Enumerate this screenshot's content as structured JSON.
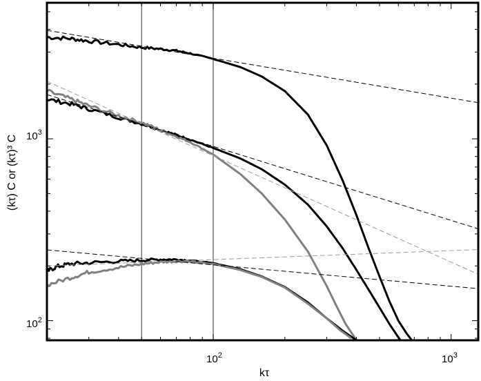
{
  "chart_data": {
    "type": "line",
    "xlabel": "kτ",
    "ylabel": "(kτ) C  or  (kτ)³ C",
    "xscale": "log",
    "yscale": "log",
    "xlim": [
      20,
      1300
    ],
    "ylim": [
      78,
      5600
    ],
    "grid": false,
    "legend": "none",
    "x_ticks": [
      {
        "value": 100,
        "base": "10",
        "exp": "2"
      },
      {
        "value": 1000,
        "base": "10",
        "exp": "3"
      }
    ],
    "y_ticks": [
      {
        "value": 100,
        "base": "10",
        "exp": "2"
      },
      {
        "value": 1000,
        "base": "10",
        "exp": "3"
      }
    ],
    "vertical_lines": [
      50,
      100
    ],
    "colors": {
      "black": "#000000",
      "gray": "#808080",
      "reference": "#000000",
      "reference_gray": "#9a9a9a"
    },
    "series": [
      {
        "color": "black",
        "style": "solid",
        "noisy": true,
        "points": [
          [
            20,
            3620
          ],
          [
            25,
            3560
          ],
          [
            30,
            3450
          ],
          [
            40,
            3300
          ],
          [
            50,
            3180
          ],
          [
            60,
            3120
          ],
          [
            70,
            3050
          ],
          [
            80,
            2950
          ],
          [
            100,
            2750
          ],
          [
            130,
            2480
          ],
          [
            160,
            2200
          ],
          [
            200,
            1830
          ],
          [
            250,
            1360
          ],
          [
            300,
            920
          ],
          [
            350,
            590
          ],
          [
            400,
            380
          ],
          [
            450,
            250
          ],
          [
            500,
            175
          ],
          [
            550,
            128
          ],
          [
            600,
            100
          ],
          [
            650,
            85
          ],
          [
            700,
            75
          ]
        ]
      },
      {
        "color": "black",
        "style": "solid",
        "noisy": true,
        "points": [
          [
            20,
            1650
          ],
          [
            25,
            1560
          ],
          [
            30,
            1460
          ],
          [
            40,
            1310
          ],
          [
            50,
            1210
          ],
          [
            60,
            1120
          ],
          [
            70,
            1050
          ],
          [
            80,
            990
          ],
          [
            100,
            890
          ],
          [
            130,
            780
          ],
          [
            160,
            680
          ],
          [
            200,
            560
          ],
          [
            250,
            435
          ],
          [
            300,
            330
          ],
          [
            350,
            250
          ],
          [
            400,
            190
          ],
          [
            450,
            148
          ],
          [
            500,
            118
          ],
          [
            550,
            96
          ],
          [
            600,
            81
          ],
          [
            650,
            70
          ]
        ]
      },
      {
        "color": "gray",
        "style": "solid",
        "noisy": true,
        "points": [
          [
            20,
            1830
          ],
          [
            25,
            1660
          ],
          [
            30,
            1520
          ],
          [
            40,
            1340
          ],
          [
            50,
            1230
          ],
          [
            60,
            1120
          ],
          [
            70,
            1030
          ],
          [
            80,
            960
          ],
          [
            100,
            820
          ],
          [
            130,
            640
          ],
          [
            160,
            500
          ],
          [
            200,
            360
          ],
          [
            250,
            240
          ],
          [
            300,
            155
          ],
          [
            330,
            120
          ],
          [
            360,
            96
          ],
          [
            400,
            78
          ]
        ]
      },
      {
        "color": "black",
        "style": "solid",
        "noisy": true,
        "points": [
          [
            20,
            187
          ],
          [
            22,
            198
          ],
          [
            25,
            205
          ],
          [
            30,
            208
          ],
          [
            40,
            212
          ],
          [
            50,
            215
          ],
          [
            60,
            217
          ],
          [
            70,
            217
          ],
          [
            80,
            214
          ],
          [
            100,
            207
          ],
          [
            130,
            192
          ],
          [
            160,
            175
          ],
          [
            200,
            153
          ],
          [
            250,
            126
          ],
          [
            300,
            103
          ],
          [
            350,
            88
          ],
          [
            400,
            78
          ]
        ]
      },
      {
        "color": "gray",
        "style": "solid",
        "noisy": true,
        "points": [
          [
            20,
            157
          ],
          [
            25,
            172
          ],
          [
            30,
            185
          ],
          [
            40,
            196
          ],
          [
            50,
            205
          ],
          [
            60,
            210
          ],
          [
            70,
            212
          ],
          [
            80,
            211
          ],
          [
            100,
            205
          ],
          [
            130,
            190
          ],
          [
            160,
            174
          ],
          [
            200,
            152
          ],
          [
            250,
            124
          ],
          [
            300,
            103
          ],
          [
            340,
            89
          ],
          [
            380,
            80
          ]
        ]
      },
      {
        "color": "reference",
        "style": "dashed",
        "points": [
          [
            20,
            3950
          ],
          [
            1300,
            1580
          ]
        ]
      },
      {
        "color": "reference",
        "style": "dashed",
        "points": [
          [
            20,
            1750
          ],
          [
            1300,
            320
          ]
        ]
      },
      {
        "color": "reference_gray",
        "style": "dashed",
        "points": [
          [
            20,
            2070
          ],
          [
            1300,
            180
          ]
        ]
      },
      {
        "color": "reference",
        "style": "dashed",
        "points": [
          [
            20,
            245
          ],
          [
            1300,
            150
          ]
        ]
      },
      {
        "color": "reference_gray",
        "style": "dashed",
        "points": [
          [
            20,
            200
          ],
          [
            1300,
            246
          ]
        ]
      }
    ]
  }
}
